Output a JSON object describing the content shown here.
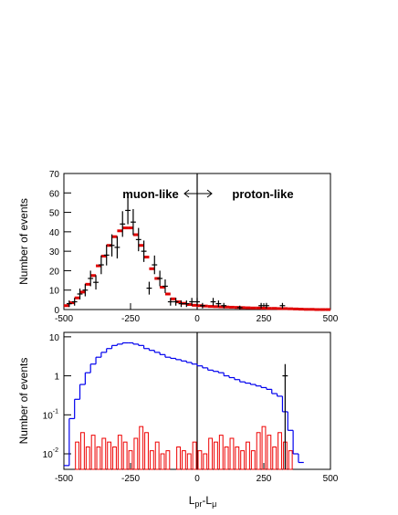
{
  "chart_data": [
    {
      "type": "errorbar",
      "ylabel": "Number of events",
      "annotations": [
        "muon-like",
        "proton-like"
      ],
      "xlim": [
        -500,
        500
      ],
      "xticks": [
        -500,
        -250,
        0,
        250,
        500
      ],
      "ylim": [
        0,
        70
      ],
      "yticks": [
        0,
        10,
        20,
        30,
        40,
        50,
        60,
        70
      ],
      "log": false,
      "vline": 0,
      "series": [
        {
          "style": "marker",
          "color": "#e00000",
          "x": [
            -490,
            -470,
            -450,
            -430,
            -410,
            -390,
            -370,
            -350,
            -330,
            -310,
            -290,
            -270,
            -250,
            -230,
            -210,
            -190,
            -170,
            -150,
            -130,
            -110,
            -90,
            -70,
            -50,
            -30,
            -10,
            10,
            30,
            50,
            70,
            90,
            110,
            130,
            150,
            170,
            190,
            210,
            230,
            250,
            270,
            290,
            310,
            330,
            350,
            370,
            390,
            410,
            430,
            450,
            470,
            490
          ],
          "values": [
            2,
            3.5,
            6,
            9,
            13,
            17.5,
            22.5,
            27.5,
            33,
            37.5,
            40.5,
            42,
            42,
            38.5,
            33,
            27,
            21,
            16,
            11.5,
            8,
            5.5,
            4,
            3.2,
            2.6,
            2.2,
            2,
            1.8,
            1.6,
            1.5,
            1.4,
            1.3,
            1.2,
            1.1,
            1,
            0.9,
            0.8,
            0.8,
            0.7,
            0.6,
            0.6,
            0.5,
            0.5,
            0.4,
            0.3,
            0.2,
            0.1,
            0.1,
            0,
            0,
            0
          ]
        },
        {
          "style": "errorbar",
          "color": "#000000",
          "x": [
            -480,
            -460,
            -440,
            -420,
            -400,
            -380,
            -360,
            -340,
            -320,
            -300,
            -280,
            -260,
            -240,
            -220,
            -200,
            -180,
            -160,
            -140,
            -120,
            -100,
            -80,
            -60,
            -40,
            -20,
            0,
            20,
            60,
            80,
            100,
            160,
            240,
            260,
            320
          ],
          "values": [
            3,
            4,
            8,
            10,
            16,
            14,
            23,
            28,
            33,
            32,
            44,
            51,
            45,
            36,
            30,
            11,
            23,
            16,
            12,
            4,
            4,
            3,
            3,
            4,
            4,
            2,
            4,
            3,
            2,
            1,
            2,
            2,
            2
          ],
          "errors": [
            1.7,
            2,
            2.8,
            3.2,
            4,
            3.7,
            4.8,
            5.3,
            5.7,
            5.7,
            6.6,
            7.1,
            6.7,
            6,
            5.5,
            3.3,
            4.8,
            4,
            3.5,
            2,
            2,
            1.7,
            1.7,
            2,
            2,
            1.4,
            2,
            1.7,
            1.4,
            1,
            1.4,
            1.4,
            1.4
          ]
        }
      ]
    },
    {
      "type": "histogram",
      "ylabel": "Number of events",
      "xlabel": {
        "text1": "L",
        "sub1": "pr",
        "text2": "-L",
        "sub2": "μ"
      },
      "xlim": [
        -500,
        500
      ],
      "xticks": [
        -500,
        -250,
        0,
        250,
        500
      ],
      "ylim": [
        0.004,
        13
      ],
      "yticks": [
        10,
        1,
        {
          "value": 0.1,
          "label": "10",
          "exponent": "-1"
        },
        {
          "value": 0.01,
          "label": "10",
          "exponent": "-2"
        }
      ],
      "log": true,
      "vline": 0,
      "bins": [
        -500,
        -480,
        -460,
        -440,
        -420,
        -400,
        -380,
        -360,
        -340,
        -320,
        -300,
        -280,
        -260,
        -240,
        -220,
        -200,
        -180,
        -160,
        -140,
        -120,
        -100,
        -80,
        -60,
        -40,
        -20,
        0,
        20,
        40,
        60,
        80,
        100,
        120,
        140,
        160,
        180,
        200,
        220,
        240,
        260,
        280,
        300,
        320,
        340,
        360,
        380,
        400
      ],
      "series": [
        {
          "style": "step",
          "color": "#0000ee",
          "values": [
            0.005,
            0.08,
            0.25,
            0.6,
            1.2,
            2,
            3,
            4,
            5,
            6,
            6.5,
            7,
            7,
            6.5,
            6,
            5,
            4.5,
            4,
            3.5,
            3,
            2.8,
            2.6,
            2.4,
            2.2,
            2,
            1.8,
            1.6,
            1.4,
            1.3,
            1.2,
            1,
            0.9,
            0.8,
            0.7,
            0.65,
            0.6,
            0.55,
            0.5,
            0.45,
            0.35,
            0.3,
            0.12,
            0.04,
            0.01,
            0.006
          ]
        },
        {
          "style": "box",
          "color": "#ee0000",
          "values": [
            null,
            null,
            0.02,
            0.035,
            0.015,
            0.03,
            0.015,
            0.025,
            0.02,
            0.015,
            0.03,
            0.02,
            0.012,
            0.025,
            0.05,
            0.035,
            0.012,
            0.02,
            0.01,
            0.012,
            null,
            0.015,
            0.012,
            0.01,
            0.02,
            0.012,
            0.01,
            0.025,
            0.02,
            0.03,
            0.015,
            0.025,
            0.015,
            0.012,
            0.02,
            0.012,
            0.035,
            0.05,
            0.03,
            0.015,
            0.035,
            0.02,
            0.012,
            null,
            null
          ]
        },
        {
          "style": "errorbar",
          "color": "#000000",
          "x": [
            330
          ],
          "values": [
            1
          ],
          "errors": [
            1
          ]
        }
      ]
    }
  ]
}
